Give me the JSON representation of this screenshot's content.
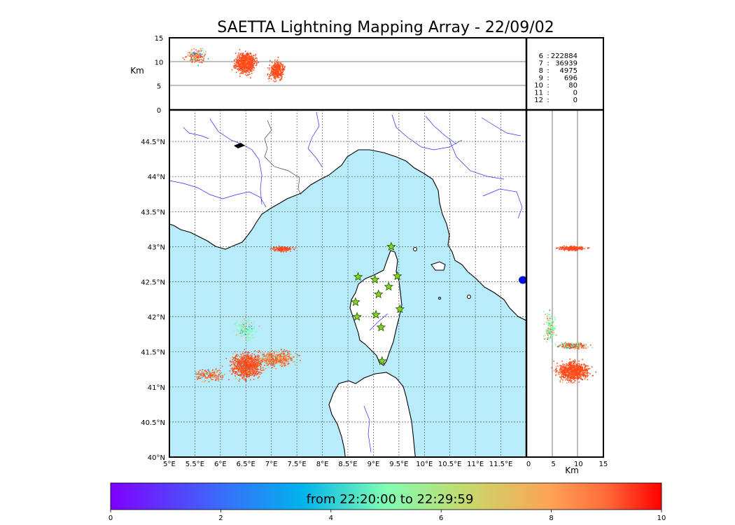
{
  "title": "SAETTA Lightning Mapping Array - 22/09/02",
  "colors": {
    "sea": "#b8ecfa",
    "land": "#ffffff",
    "coast": "#000000",
    "rivers": "#2a2aff",
    "station": "#8ad21e",
    "highlight": "#ff0000",
    "grid": "#555555"
  },
  "icons": {
    "station": "star-icon"
  },
  "top_panel": {
    "ylabel": "Km",
    "yticks": [
      "0",
      "5",
      "10",
      "15"
    ]
  },
  "side_panel": {
    "xlabel": "Km",
    "xticks": [
      "0",
      "5",
      "10",
      "15"
    ]
  },
  "map": {
    "lon_ticks": [
      "5°E",
      "5.5°E",
      "6°E",
      "6.5°E",
      "7°E",
      "7.5°E",
      "8°E",
      "8.5°E",
      "9°E",
      "9.5°E",
      "10°E",
      "10.5°E",
      "11°E",
      "11.5°E"
    ],
    "lat_ticks": [
      "40°N",
      "40.5°N",
      "41°N",
      "41.5°N",
      "42°N",
      "42.5°N",
      "43°N",
      "43.5°N",
      "44°N",
      "44.5°N"
    ],
    "lon_range": [
      5,
      12
    ],
    "lat_range": [
      40,
      44.95
    ],
    "stations": [
      [
        9.35,
        43.0
      ],
      [
        8.7,
        42.57
      ],
      [
        9.03,
        42.53
      ],
      [
        9.47,
        42.58
      ],
      [
        8.65,
        42.21
      ],
      [
        9.1,
        42.32
      ],
      [
        9.3,
        42.43
      ],
      [
        8.68,
        42.0
      ],
      [
        9.05,
        42.03
      ],
      [
        9.52,
        42.11
      ],
      [
        9.15,
        41.85
      ],
      [
        9.17,
        41.37
      ]
    ]
  },
  "stats": {
    "rows": [
      {
        "label": "6",
        "value": "222884",
        "highlight": false
      },
      {
        "label": "7",
        "value": "36939",
        "highlight": true
      },
      {
        "label": "8",
        "value": "4975",
        "highlight": false
      },
      {
        "label": "9",
        "value": "696",
        "highlight": false
      },
      {
        "label": "10",
        "value": "80",
        "highlight": false
      },
      {
        "label": "11",
        "value": "0",
        "highlight": false
      },
      {
        "label": "12",
        "value": "0",
        "highlight": false
      }
    ]
  },
  "colorbar": {
    "label": "from 22:20:00 to 22:29:59",
    "ticks": [
      "0",
      "2",
      "4",
      "6",
      "8",
      "10"
    ],
    "range": [
      0,
      10
    ]
  }
}
